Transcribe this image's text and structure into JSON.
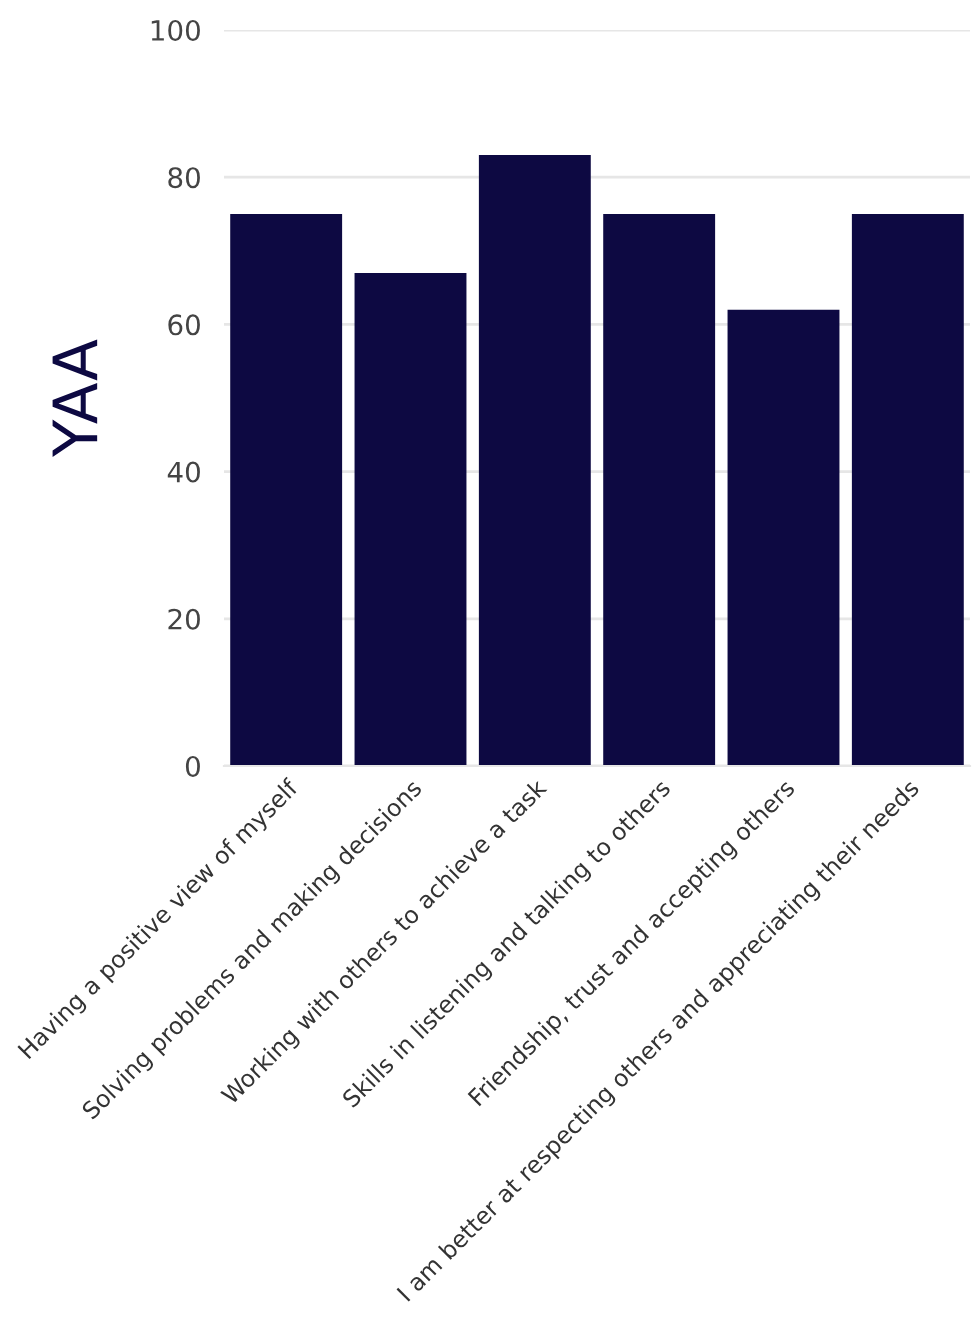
{
  "chart_data": {
    "type": "bar",
    "ylabel": "YAA",
    "categories": [
      "Having a positive view of myself",
      "Solving problems and making decisions",
      "Working with others to achieve a task",
      "Skills in listening and talking to others",
      "Friendship, trust and accepting others",
      "I am better at respecting others and appreciating their needs"
    ],
    "values": [
      75,
      67,
      83,
      75,
      62,
      75
    ],
    "color": "#0d0942",
    "ylim": [
      0,
      100
    ],
    "yticks": [
      0,
      20,
      40,
      60,
      80,
      100
    ],
    "grid": "y"
  }
}
